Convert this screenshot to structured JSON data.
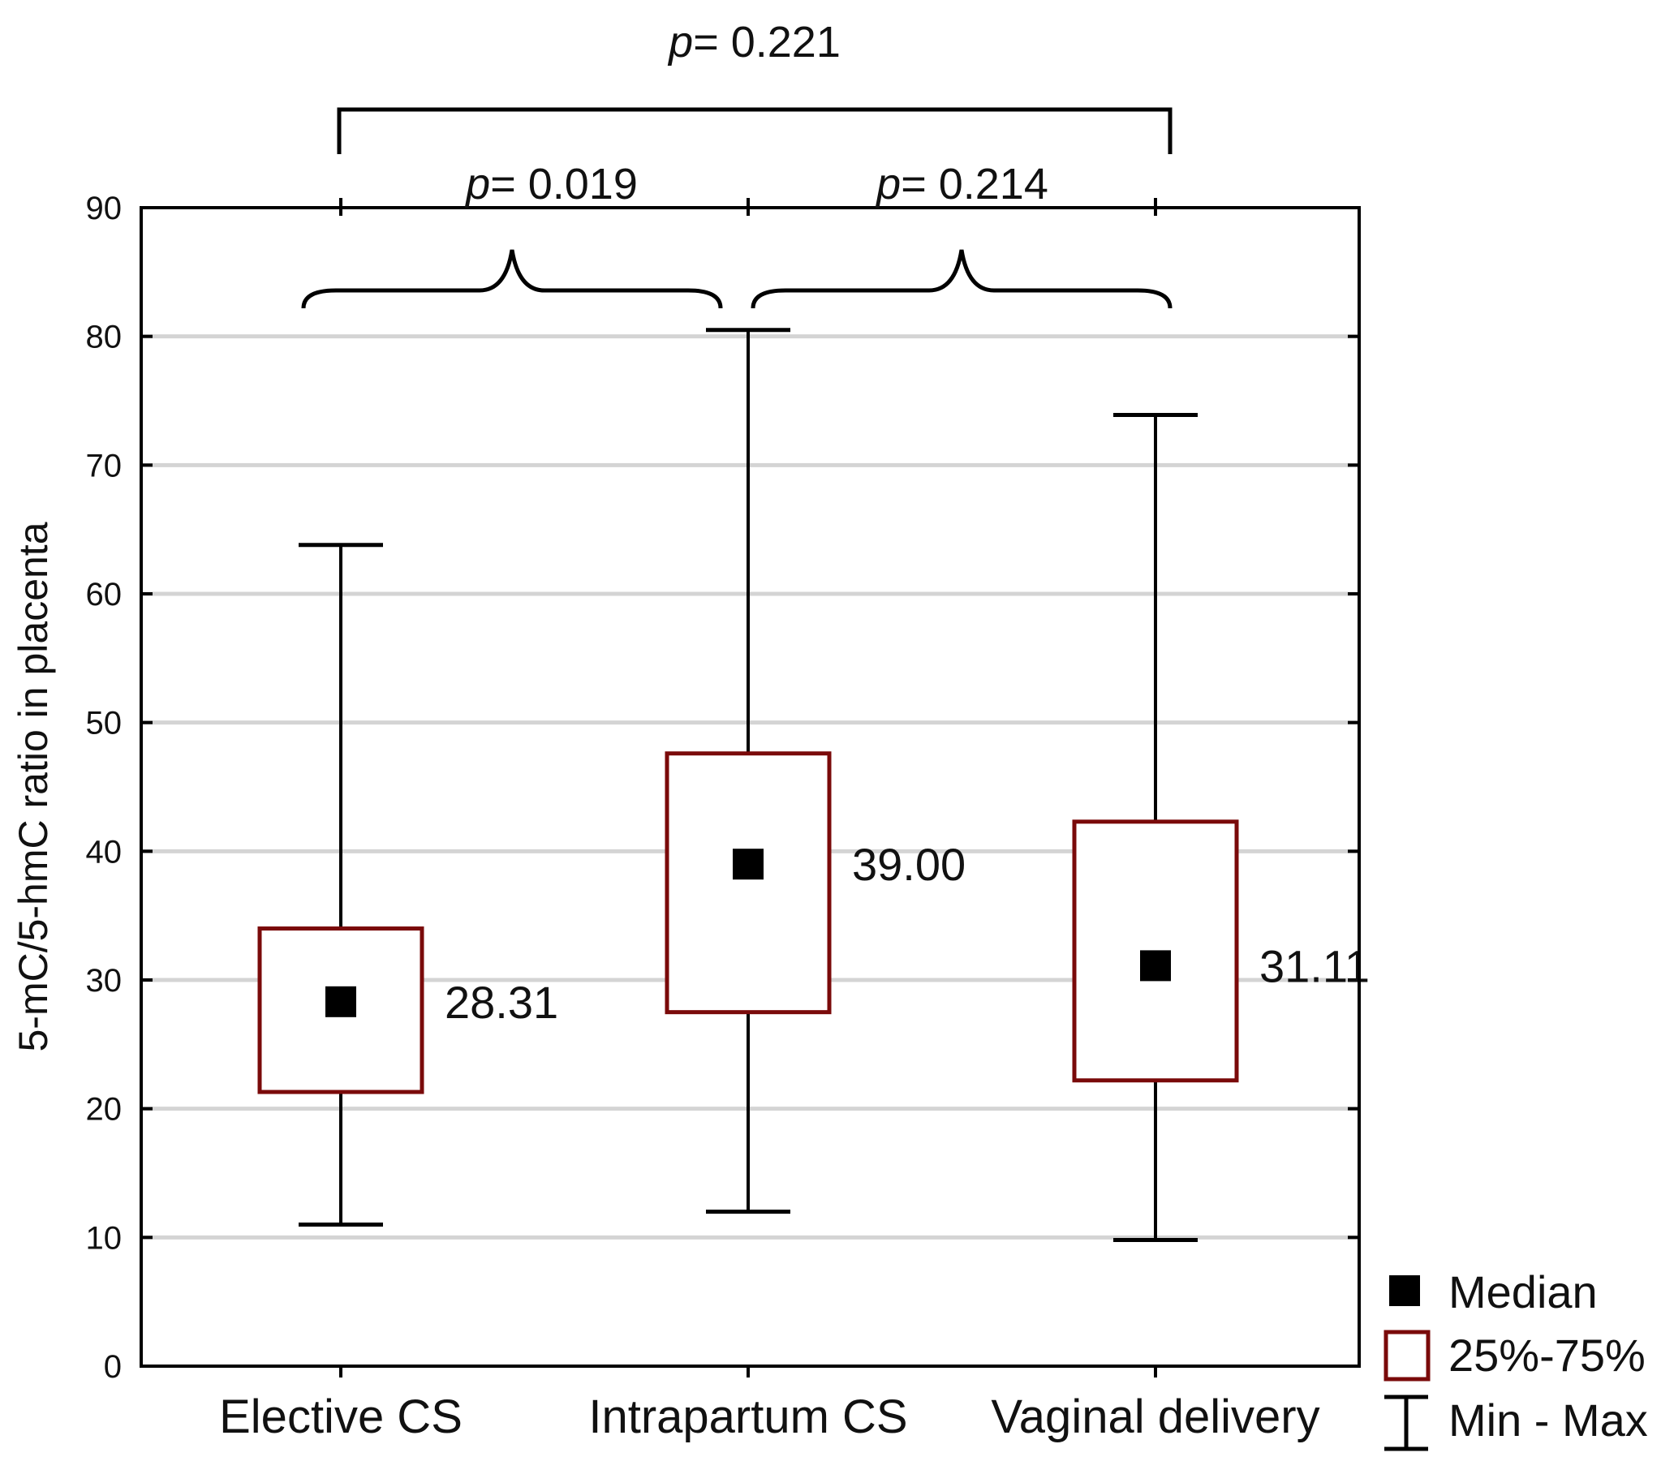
{
  "chart_data": {
    "type": "boxplot",
    "ylabel": "5-mC/5-hmC ratio in placenta",
    "ylim": [
      0,
      90
    ],
    "yticks": [
      0,
      10,
      20,
      30,
      40,
      50,
      60,
      70,
      80,
      90
    ],
    "grid": true,
    "categories": [
      "Elective CS",
      "Intrapartum CS",
      "Vaginal delivery"
    ],
    "boxes": [
      {
        "category": "Elective CS",
        "min": 11.0,
        "q1": 21.3,
        "median": 28.31,
        "q3": 34.0,
        "max": 63.8,
        "median_label": "28.31"
      },
      {
        "category": "Intrapartum CS",
        "min": 12.0,
        "q1": 27.5,
        "median": 39.0,
        "q3": 47.6,
        "max": 80.5,
        "median_label": "39.00"
      },
      {
        "category": "Vaginal delivery",
        "min": 9.8,
        "q1": 22.2,
        "median": 31.11,
        "q3": 42.3,
        "max": 73.9,
        "median_label": "31.11"
      }
    ],
    "comparisons": [
      {
        "between": [
          "Elective CS",
          "Vaginal delivery"
        ],
        "p_prefix": "p",
        "p_text": "= 0.221"
      },
      {
        "between": [
          "Elective CS",
          "Intrapartum CS"
        ],
        "p_prefix": "p",
        "p_text": "= 0.019"
      },
      {
        "between": [
          "Intrapartum CS",
          "Vaginal delivery"
        ],
        "p_prefix": "p",
        "p_text": "= 0.214"
      }
    ],
    "legend": [
      {
        "symbol": "filled-square",
        "label": "Median"
      },
      {
        "symbol": "open-square",
        "label": "25%-75%"
      },
      {
        "symbol": "whisker",
        "label": "Min - Max"
      }
    ],
    "legend_position": "bottom-right",
    "colors": {
      "box": "#7a0a0a",
      "median": "#000000",
      "whisker": "#000000",
      "grid": "#d4d4d4",
      "axis": "#000000"
    }
  }
}
